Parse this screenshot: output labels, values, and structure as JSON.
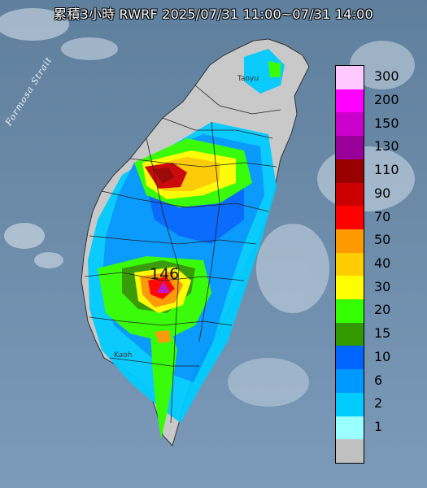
{
  "title": "累積3小時 RWRF 2025/07/31 11:00~07/31 14:00",
  "strait_label": "Formosa Strait",
  "peak": {
    "value": "146",
    "marker_color": "#c01ac8"
  },
  "city_labels": [
    "Taoyu",
    "Kaoh"
  ],
  "legend": {
    "unit_note": "",
    "items": [
      {
        "label": "300",
        "color": "#ffc8ff"
      },
      {
        "label": "200",
        "color": "#ff00ff"
      },
      {
        "label": "150",
        "color": "#cc00cc"
      },
      {
        "label": "130",
        "color": "#990099"
      },
      {
        "label": "110",
        "color": "#990000"
      },
      {
        "label": "90",
        "color": "#cc0000"
      },
      {
        "label": "70",
        "color": "#ff0000"
      },
      {
        "label": "50",
        "color": "#ff9900"
      },
      {
        "label": "40",
        "color": "#ffcc00"
      },
      {
        "label": "30",
        "color": "#ffff00"
      },
      {
        "label": "20",
        "color": "#33ff00"
      },
      {
        "label": "15",
        "color": "#339900"
      },
      {
        "label": "10",
        "color": "#0066ff"
      },
      {
        "label": "6",
        "color": "#0099ff"
      },
      {
        "label": "2",
        "color": "#00ccff"
      },
      {
        "label": "1",
        "color": "#99ffff"
      },
      {
        "label": "",
        "color": "#c0c0c0"
      }
    ]
  },
  "colors": {
    "sea": "#6a8aa8",
    "land": "#c8c8c8",
    "boundary": "#222222"
  }
}
